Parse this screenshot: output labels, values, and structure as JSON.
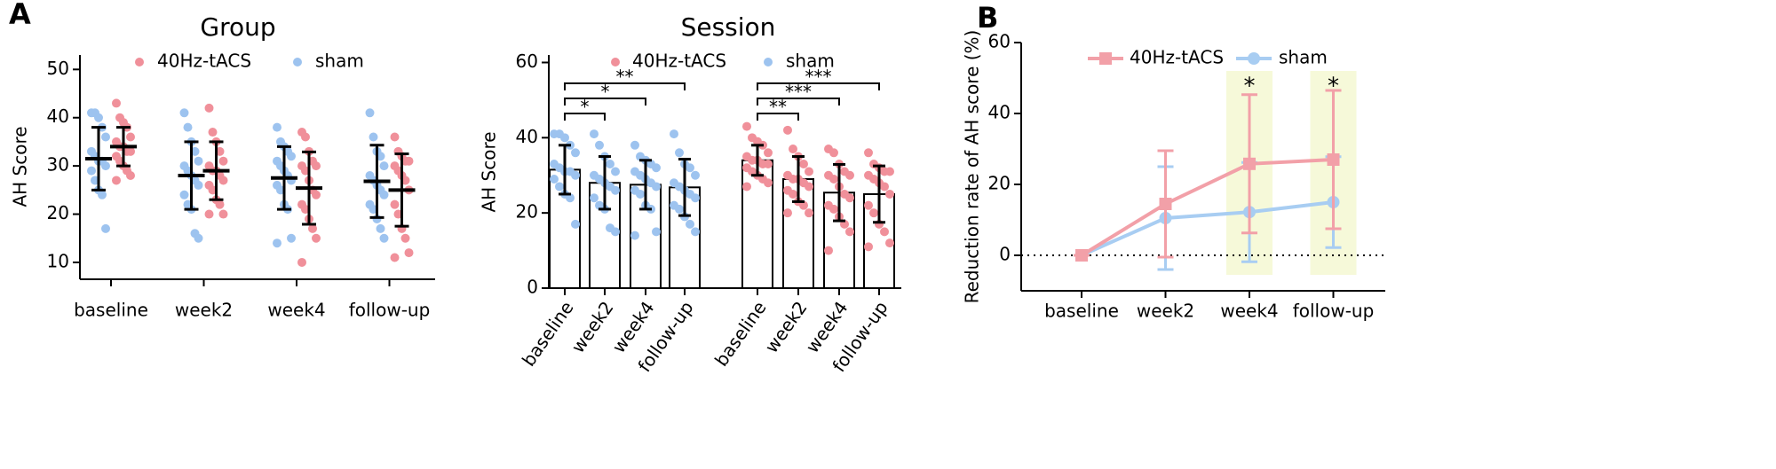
{
  "chart_data": [
    {
      "type": "dot",
      "panel_label": "A",
      "title": "Group",
      "y_label": "AH Score",
      "categories": [
        "baseline",
        "week2",
        "week4",
        "follow-up"
      ],
      "series": [
        {
          "name": "40Hz-tACS",
          "color": "#f0909a",
          "values": [
            [
              43,
              40,
              39,
              38,
              36,
              35,
              34,
              34,
              33,
              33,
              32,
              31,
              30,
              29,
              28,
              27
            ],
            [
              42,
              37,
              35,
              33,
              31,
              30,
              29,
              29,
              28,
              27,
              26,
              25,
              23,
              22,
              20,
              20
            ],
            [
              37,
              36,
              33,
              31,
              30,
              30,
              29,
              27,
              25,
              24,
              22,
              21,
              19,
              17,
              15,
              10
            ],
            [
              36,
              33,
              32,
              31,
              31,
              30,
              29,
              28,
              27,
              25,
              22,
              20,
              17,
              15,
              12,
              11
            ]
          ],
          "means": [
            34,
            29,
            25.4,
            25
          ],
          "sds": [
            4,
            6,
            7.5,
            7.5
          ]
        },
        {
          "name": "sham",
          "color": "#9dc3ef",
          "values": [
            [
              41,
              41,
              40,
              38,
              36,
              33,
              32,
              31,
              31,
              30,
              29,
              27,
              25,
              24,
              17
            ],
            [
              41,
              38,
              35,
              33,
              31,
              30,
              29,
              28,
              27,
              26,
              24,
              22,
              21,
              16,
              15
            ],
            [
              38,
              35,
              34,
              33,
              32,
              31,
              30,
              29,
              28,
              27,
              26,
              25,
              22,
              21,
              15,
              14
            ],
            [
              41,
              36,
              33,
              32,
              30,
              28,
              27,
              26,
              25,
              24,
              22,
              21,
              19,
              17,
              15
            ]
          ],
          "means": [
            31.5,
            28,
            27.5,
            26.8
          ],
          "sds": [
            6.5,
            7,
            6.5,
            7.5
          ]
        }
      ],
      "ylim": [
        6.5,
        53
      ],
      "yticks": [
        10,
        20,
        30,
        40,
        50
      ]
    },
    {
      "type": "bar",
      "title": "Session",
      "y_label": "AH Score",
      "categories": [
        "baseline",
        "week2",
        "week4",
        "follow-up",
        "baseline",
        "week2",
        "week4",
        "follow-up"
      ],
      "series": [
        {
          "name": "40Hz-tACS",
          "color": "#f0909a"
        },
        {
          "name": "sham",
          "color": "#9dc3ef"
        }
      ],
      "annotations": [
        "*",
        "*",
        "**",
        "**",
        "***",
        "***"
      ],
      "ylim": [
        0,
        62
      ],
      "yticks": [
        0,
        20,
        40,
        60
      ]
    },
    {
      "type": "line",
      "panel_label": "B",
      "y_label": "Reduction rate of AH score (%)",
      "categories": [
        "baseline",
        "week2",
        "week4",
        "follow-up"
      ],
      "series": [
        {
          "name": "40Hz-tACS",
          "color": "#f2a0a8",
          "values": [
            0,
            14.5,
            25.8,
            27
          ],
          "errors": [
            0,
            15,
            19.5,
            19.5
          ]
        },
        {
          "name": "sham",
          "color": "#a8cdf2",
          "values": [
            0,
            10.5,
            12.2,
            15
          ],
          "errors": [
            0,
            14.5,
            14,
            12.8
          ]
        }
      ],
      "annotations": [
        "*",
        "*"
      ],
      "ylim": [
        -10,
        60
      ],
      "yticks": [
        0,
        20,
        40,
        60
      ]
    }
  ]
}
